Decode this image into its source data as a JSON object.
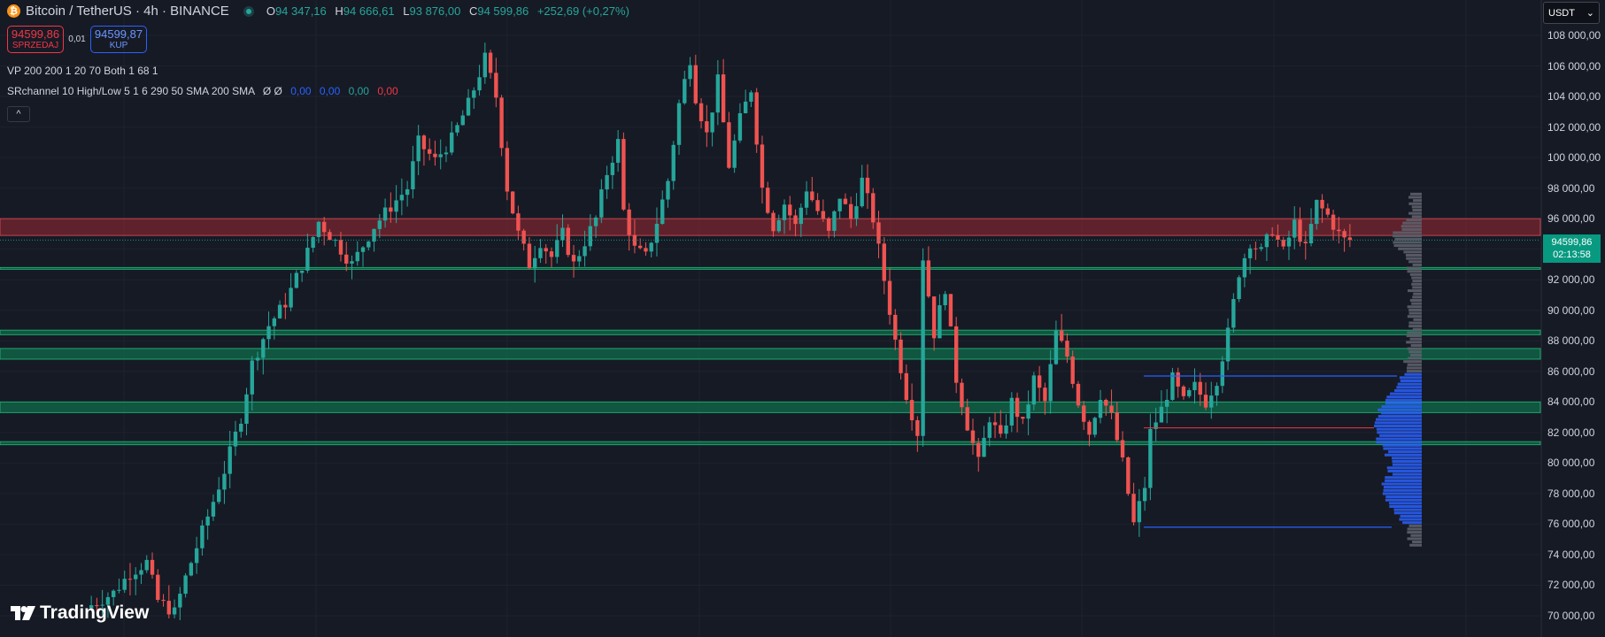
{
  "header": {
    "coin_glyph": "₿",
    "title": "Bitcoin / TetherUS · 4h · BINANCE",
    "ohlc": {
      "o_key": "O",
      "o_val": "94 347,16",
      "h_key": "H",
      "h_val": "94 666,61",
      "l_key": "L",
      "l_val": "93 876,00",
      "c_key": "C",
      "c_val": "94 599,86",
      "change": "+252,69 (+0,27%)"
    }
  },
  "trade": {
    "sell_price": "94599,86",
    "sell_label": "SPRZEDAJ",
    "spread": "0,01",
    "buy_price": "94599,87",
    "buy_label": "KUP"
  },
  "indicators": {
    "vp": "VP 200 200 1 20 70 Both 1 68 1",
    "sr_text": "SRchannel 10 High/Low 5 1 6 290 50 SMA 200 SMA",
    "sr_symbols": "Ø Ø",
    "sr_v1": "0,00",
    "sr_v2": "0,00",
    "sr_v3": "0,00",
    "sr_v4": "0,00"
  },
  "collapse_glyph": "^",
  "currency": {
    "label": "USDT",
    "arrow": "⌄"
  },
  "axis_labels": [
    "108 000,00",
    "106 000,00",
    "104 000,00",
    "102 000,00",
    "100 000,00",
    "98 000,00",
    "96 000,00",
    "94 000,00",
    "92 000,00",
    "90 000,00",
    "88 000,00",
    "86 000,00",
    "84 000,00",
    "82 000,00",
    "80 000,00",
    "78 000,00",
    "76 000,00",
    "74 000,00",
    "72 000,00",
    "70 000,00"
  ],
  "current_price": {
    "price": "94599,86",
    "countdown": "02:13:58"
  },
  "logo_text": "TradingView",
  "colors": {
    "background": "#161a25",
    "up": "#26a69a",
    "down": "#ef5350",
    "resistance_zone": "#9c2a35",
    "support_zone": "#0f6b4a",
    "volume_profile_value_area": "#2962ff",
    "volume_profile_outside": "#5d606b"
  },
  "chart_data": {
    "type": "candlestick",
    "symbol": "Bitcoin / TetherUS",
    "timeframe": "4h",
    "exchange": "BINANCE",
    "ylim": [
      69500,
      109000
    ],
    "last_price": 94599.86,
    "price_path": [
      [
        0,
        70500
      ],
      [
        5,
        71500
      ],
      [
        8,
        72800
      ],
      [
        11,
        73500
      ],
      [
        13,
        71000
      ],
      [
        16,
        70200
      ],
      [
        18,
        72500
      ],
      [
        22,
        76500
      ],
      [
        25,
        79500
      ],
      [
        28,
        83000
      ],
      [
        30,
        86500
      ],
      [
        33,
        89000
      ],
      [
        36,
        90500
      ],
      [
        40,
        93800
      ],
      [
        42,
        95800
      ],
      [
        45,
        94500
      ],
      [
        48,
        93000
      ],
      [
        52,
        95500
      ],
      [
        55,
        96800
      ],
      [
        58,
        98000
      ],
      [
        60,
        101000
      ],
      [
        63,
        99800
      ],
      [
        66,
        101200
      ],
      [
        69,
        103500
      ],
      [
        72,
        106500
      ],
      [
        74,
        104000
      ],
      [
        76,
        98000
      ],
      [
        78,
        95000
      ],
      [
        80,
        93000
      ],
      [
        82,
        94500
      ],
      [
        84,
        93500
      ],
      [
        86,
        95000
      ],
      [
        88,
        93000
      ],
      [
        90,
        94500
      ],
      [
        92,
        96000
      ],
      [
        94,
        99000
      ],
      [
        96,
        101000
      ],
      [
        97,
        96500
      ],
      [
        99,
        94000
      ],
      [
        101,
        93500
      ],
      [
        103,
        95800
      ],
      [
        105,
        98500
      ],
      [
        107,
        103500
      ],
      [
        109,
        106500
      ],
      [
        110,
        104000
      ],
      [
        112,
        101500
      ],
      [
        114,
        105000
      ],
      [
        116,
        99500
      ],
      [
        118,
        102500
      ],
      [
        120,
        104500
      ],
      [
        122,
        98000
      ],
      [
        124,
        95500
      ],
      [
        126,
        97000
      ],
      [
        128,
        95500
      ],
      [
        130,
        98000
      ],
      [
        132,
        96500
      ],
      [
        134,
        95000
      ],
      [
        136,
        97500
      ],
      [
        138,
        96000
      ],
      [
        140,
        98500
      ],
      [
        142,
        96000
      ],
      [
        144,
        92000
      ],
      [
        146,
        88000
      ],
      [
        148,
        84500
      ],
      [
        150,
        82000
      ],
      [
        151,
        93500
      ],
      [
        153,
        88500
      ],
      [
        155,
        91500
      ],
      [
        157,
        85500
      ],
      [
        159,
        82500
      ],
      [
        161,
        80000
      ],
      [
        163,
        83000
      ],
      [
        165,
        81500
      ],
      [
        167,
        84000
      ],
      [
        169,
        82500
      ],
      [
        171,
        85500
      ],
      [
        173,
        84000
      ],
      [
        175,
        88500
      ],
      [
        177,
        87000
      ],
      [
        179,
        84000
      ],
      [
        181,
        82000
      ],
      [
        183,
        84500
      ],
      [
        185,
        83000
      ],
      [
        187,
        80000
      ],
      [
        189,
        76000
      ],
      [
        191,
        78500
      ],
      [
        192,
        82000
      ],
      [
        194,
        83500
      ],
      [
        196,
        85500
      ],
      [
        198,
        84000
      ],
      [
        200,
        85000
      ],
      [
        202,
        84000
      ],
      [
        204,
        85500
      ],
      [
        206,
        88500
      ],
      [
        208,
        92500
      ],
      [
        210,
        94500
      ],
      [
        212,
        93800
      ],
      [
        214,
        95300
      ],
      [
        216,
        93800
      ],
      [
        218,
        95700
      ],
      [
        220,
        94000
      ],
      [
        222,
        97000
      ],
      [
        224,
        96200
      ],
      [
        226,
        95000
      ],
      [
        227,
        94600
      ]
    ],
    "price_path_x_unit": "4h bar index",
    "support_resistance_zones": [
      {
        "type": "resistance",
        "from": 94900,
        "to": 96000
      },
      {
        "type": "support",
        "from": 92700,
        "to": 92800
      },
      {
        "type": "support",
        "from": 88400,
        "to": 88700
      },
      {
        "type": "support",
        "from": 86800,
        "to": 87500
      },
      {
        "type": "support",
        "from": 83300,
        "to": 84000
      },
      {
        "type": "support",
        "from": 81200,
        "to": 81400
      }
    ],
    "volume_profile": {
      "price_range": [
        74500,
        97700
      ],
      "value_area_high": 85700,
      "value_area_low": 75800,
      "poc": 82300
    }
  }
}
